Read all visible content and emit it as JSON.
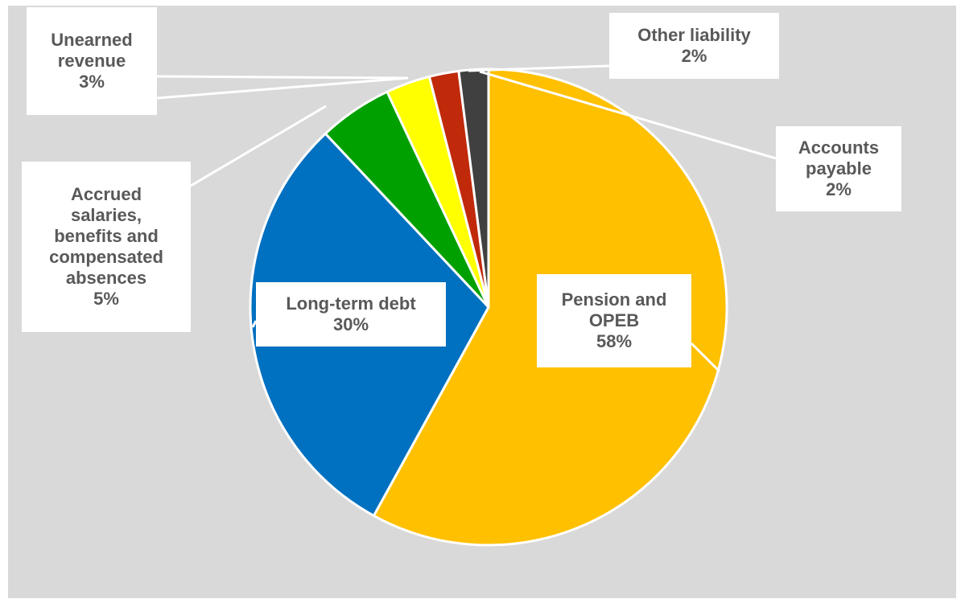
{
  "chart_data": {
    "type": "pie",
    "title": "",
    "start_angle_deg": 0,
    "direction": "clockwise",
    "slices": [
      {
        "category": "Pension and OPEB",
        "label_lines": [
          "Pension and",
          "OPEB"
        ],
        "value": 58,
        "percent_label": "58%",
        "color": "#FFC000"
      },
      {
        "category": "Long-term debt",
        "label_lines": [
          "Long-term debt"
        ],
        "value": 30,
        "percent_label": "30%",
        "color": "#0070C0"
      },
      {
        "category": "Accrued salaries, benefits and compensated absences",
        "label_lines": [
          "Accrued",
          "salaries,",
          "benefits and",
          "compensated",
          "absences"
        ],
        "value": 5,
        "percent_label": "5%",
        "color": "#00A000"
      },
      {
        "category": "Unearned revenue",
        "label_lines": [
          "Unearned",
          "revenue"
        ],
        "value": 3,
        "percent_label": "3%",
        "color": "#FFFF00"
      },
      {
        "category": "Accounts payable",
        "label_lines": [
          "Accounts",
          "payable"
        ],
        "value": 2,
        "percent_label": "2%",
        "color": "#C0290A"
      },
      {
        "category": "Other liability",
        "label_lines": [
          "Other liability"
        ],
        "value": 2,
        "percent_label": "2%",
        "color": "#404040"
      }
    ],
    "legend": "none",
    "background": "#D9D9D9"
  }
}
